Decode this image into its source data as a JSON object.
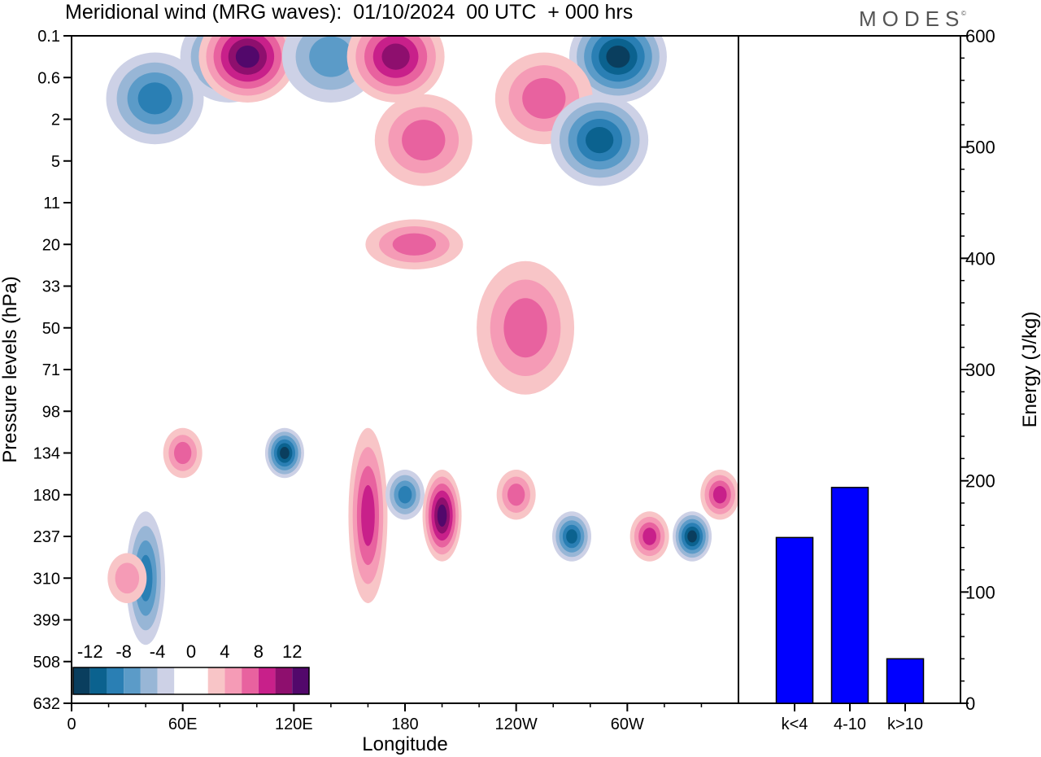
{
  "title": "Meridional wind (MRG waves):  01/10/2024  00 UTC  + 000 hrs",
  "brand": "MODES",
  "brand_mark": "©",
  "chart_data": [
    {
      "type": "heatmap",
      "xlabel": "Longitude",
      "ylabel": "Pressure levels (hPa)",
      "x_ticks": [
        "0",
        "60E",
        "120E",
        "180",
        "120W",
        "60W"
      ],
      "y_ticks": [
        "0.1",
        "0.6",
        "2",
        "5",
        "11",
        "20",
        "33",
        "50",
        "71",
        "98",
        "134",
        "180",
        "237",
        "310",
        "399",
        "508",
        "632"
      ],
      "legend": {
        "labels": [
          "-12",
          "-8",
          "-4",
          "0",
          "4",
          "8",
          "12"
        ],
        "colors": [
          "#0a3e5e",
          "#0b628f",
          "#2a7fb4",
          "#5b9bc8",
          "#98b6d6",
          "#cdd1e6",
          "#ffffff",
          "#ffffff",
          "#f8c5c7",
          "#f59bb6",
          "#e8629f",
          "#c8208a",
          "#8e0f6e",
          "#52086b"
        ]
      },
      "features": [
        {
          "lon": 85,
          "level": "0.1-0.6",
          "sign": "negative",
          "peak": -8
        },
        {
          "lon": 95,
          "level": "0.1-0.6",
          "sign": "positive",
          "peak": 12
        },
        {
          "lon": 140,
          "level": "0.1-0.6",
          "sign": "negative",
          "peak": -6
        },
        {
          "lon": 175,
          "level": "0.1-0.6",
          "sign": "positive",
          "peak": 10
        },
        {
          "lon": 295,
          "level": "0.1-0.6",
          "sign": "negative",
          "peak": -12
        },
        {
          "lon": 45,
          "level": "0.6-2",
          "sign": "negative",
          "peak": -8
        },
        {
          "lon": 255,
          "level": "0.6-2",
          "sign": "positive",
          "peak": 6
        },
        {
          "lon": 285,
          "level": "2-5",
          "sign": "negative",
          "peak": -10
        },
        {
          "lon": 190,
          "level": "2-5",
          "sign": "positive",
          "peak": 6
        },
        {
          "lon": 185,
          "level": "20",
          "sign": "positive",
          "peak": 6
        },
        {
          "lon": 245,
          "level": "33-71",
          "sign": "positive",
          "peak": 6
        },
        {
          "lon": 115,
          "level": "134",
          "sign": "negative",
          "peak": -12
        },
        {
          "lon": 60,
          "level": "134",
          "sign": "positive",
          "peak": 6
        },
        {
          "lon": 160,
          "level": "134-310",
          "sign": "positive",
          "peak": 8
        },
        {
          "lon": 180,
          "level": "180",
          "sign": "negative",
          "peak": -8
        },
        {
          "lon": 200,
          "level": "180-237",
          "sign": "positive",
          "peak": 12
        },
        {
          "lon": 240,
          "level": "180",
          "sign": "positive",
          "peak": 6
        },
        {
          "lon": 270,
          "level": "237",
          "sign": "negative",
          "peak": -10
        },
        {
          "lon": 312,
          "level": "237",
          "sign": "positive",
          "peak": 8
        },
        {
          "lon": 335,
          "level": "237",
          "sign": "negative",
          "peak": -12
        },
        {
          "lon": 350,
          "level": "180",
          "sign": "positive",
          "peak": 8
        },
        {
          "lon": 40,
          "level": "237-399",
          "sign": "negative",
          "peak": -8
        },
        {
          "lon": 30,
          "level": "310",
          "sign": "positive",
          "peak": 4
        }
      ]
    },
    {
      "type": "bar",
      "categories": [
        "k<4",
        "4-10",
        "k>10"
      ],
      "values": [
        149,
        194,
        40
      ],
      "ylabel": "Energy (J/kg)",
      "ylim": [
        0,
        600
      ],
      "y_ticks": [
        0,
        100,
        200,
        300,
        400,
        500,
        600
      ],
      "bar_color": "#0000ff"
    }
  ]
}
